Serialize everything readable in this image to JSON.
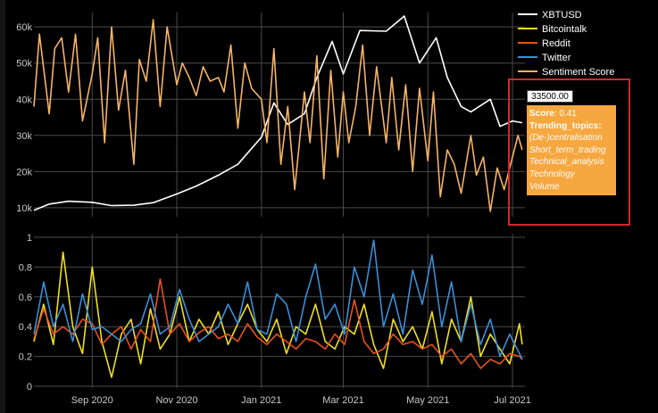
{
  "chart_data": [
    {
      "type": "line",
      "panel": "top",
      "ylim": [
        8000,
        63000
      ],
      "yticks": [
        10000,
        20000,
        30000,
        40000,
        50000,
        60000
      ],
      "ytick_labels": [
        "10k",
        "20k",
        "30k",
        "40k",
        "50k",
        "60k"
      ],
      "grid": true,
      "series": [
        {
          "name": "XBTUSD",
          "color": "#ffffff",
          "x": [
            "2020-07-21",
            "2020-08-01",
            "2020-08-15",
            "2020-09-01",
            "2020-09-15",
            "2020-10-01",
            "2020-10-15",
            "2020-11-01",
            "2020-11-15",
            "2020-12-01",
            "2020-12-15",
            "2021-01-01",
            "2021-01-10",
            "2021-01-20",
            "2021-02-01",
            "2021-02-10",
            "2021-02-21",
            "2021-03-01",
            "2021-03-13",
            "2021-04-01",
            "2021-04-14",
            "2021-04-25",
            "2021-05-07",
            "2021-05-15",
            "2021-05-25",
            "2021-06-01",
            "2021-06-15",
            "2021-06-22",
            "2021-07-01",
            "2021-07-08"
          ],
          "y": [
            9300,
            11000,
            11800,
            11500,
            10600,
            10700,
            11400,
            13800,
            16000,
            19000,
            22000,
            29500,
            39000,
            33000,
            36000,
            46000,
            56000,
            47000,
            59000,
            58800,
            63000,
            50000,
            57000,
            46000,
            38000,
            36500,
            40000,
            32500,
            34000,
            33500
          ]
        },
        {
          "name": "Sentiment Score",
          "color": "#f6b366",
          "x": [
            "2020-07-21",
            "2020-07-25",
            "2020-08-01",
            "2020-08-05",
            "2020-08-10",
            "2020-08-15",
            "2020-08-20",
            "2020-08-25",
            "2020-09-01",
            "2020-09-05",
            "2020-09-10",
            "2020-09-15",
            "2020-09-20",
            "2020-09-25",
            "2020-10-01",
            "2020-10-05",
            "2020-10-10",
            "2020-10-15",
            "2020-10-20",
            "2020-10-25",
            "2020-11-01",
            "2020-11-05",
            "2020-11-10",
            "2020-11-15",
            "2020-11-20",
            "2020-11-25",
            "2020-12-01",
            "2020-12-05",
            "2020-12-10",
            "2020-12-15",
            "2020-12-20",
            "2020-12-25",
            "2021-01-01",
            "2021-01-05",
            "2021-01-10",
            "2021-01-15",
            "2021-01-20",
            "2021-01-25",
            "2021-02-01",
            "2021-02-05",
            "2021-02-10",
            "2021-02-15",
            "2021-02-20",
            "2021-02-25",
            "2021-03-01",
            "2021-03-05",
            "2021-03-10",
            "2021-03-15",
            "2021-03-20",
            "2021-03-25",
            "2021-04-01",
            "2021-04-05",
            "2021-04-10",
            "2021-04-15",
            "2021-04-20",
            "2021-04-25",
            "2021-05-01",
            "2021-05-05",
            "2021-05-10",
            "2021-05-15",
            "2021-05-20",
            "2021-05-25",
            "2021-06-01",
            "2021-06-05",
            "2021-06-10",
            "2021-06-15",
            "2021-06-20",
            "2021-06-25",
            "2021-07-01",
            "2021-07-05",
            "2021-07-08"
          ],
          "y": [
            38000,
            58000,
            36000,
            54000,
            57000,
            42000,
            58000,
            34000,
            47000,
            57000,
            28000,
            60000,
            37000,
            48000,
            22000,
            51000,
            45000,
            62000,
            38000,
            60000,
            44000,
            50000,
            46000,
            41000,
            49000,
            45000,
            46000,
            42000,
            55000,
            32000,
            50000,
            43000,
            40000,
            28000,
            54000,
            22000,
            38000,
            15000,
            42000,
            28000,
            52000,
            18000,
            48000,
            24000,
            42000,
            28000,
            38000,
            55000,
            30000,
            49000,
            28000,
            46000,
            26000,
            44000,
            20000,
            43000,
            23000,
            42000,
            13000,
            26000,
            22000,
            14000,
            30000,
            19000,
            24000,
            9000,
            21000,
            15000,
            24000,
            30000,
            26000
          ]
        }
      ]
    },
    {
      "type": "line",
      "panel": "bottom",
      "ylim": [
        0,
        1
      ],
      "yticks": [
        0,
        0.2,
        0.4,
        0.6,
        0.8,
        1
      ],
      "ytick_labels": [
        "0",
        "0.2",
        "0.4",
        "0.6",
        "0.8",
        "1"
      ],
      "xtick_labels": [
        "Sep 2020",
        "Nov 2020",
        "Jan 2021",
        "Mar 2021",
        "May 2021",
        "Jul 2021"
      ],
      "grid": true,
      "series": [
        {
          "name": "Bitcointalk",
          "color": "#f0e020",
          "x": [
            "2020-07-21",
            "2020-07-28",
            "2020-08-04",
            "2020-08-11",
            "2020-08-18",
            "2020-08-25",
            "2020-09-01",
            "2020-09-08",
            "2020-09-15",
            "2020-09-22",
            "2020-09-29",
            "2020-10-06",
            "2020-10-13",
            "2020-10-20",
            "2020-10-27",
            "2020-11-03",
            "2020-11-10",
            "2020-11-17",
            "2020-11-24",
            "2020-12-01",
            "2020-12-08",
            "2020-12-15",
            "2020-12-22",
            "2020-12-29",
            "2021-01-05",
            "2021-01-12",
            "2021-01-19",
            "2021-01-26",
            "2021-02-02",
            "2021-02-09",
            "2021-02-16",
            "2021-02-23",
            "2021-03-02",
            "2021-03-09",
            "2021-03-16",
            "2021-03-23",
            "2021-03-30",
            "2021-04-06",
            "2021-04-13",
            "2021-04-20",
            "2021-04-27",
            "2021-05-04",
            "2021-05-11",
            "2021-05-18",
            "2021-05-25",
            "2021-06-01",
            "2021-06-08",
            "2021-06-15",
            "2021-06-22",
            "2021-06-29",
            "2021-07-06",
            "2021-07-08"
          ],
          "y": [
            0.3,
            0.55,
            0.28,
            0.9,
            0.4,
            0.22,
            0.8,
            0.3,
            0.06,
            0.35,
            0.45,
            0.15,
            0.52,
            0.25,
            0.35,
            0.6,
            0.3,
            0.45,
            0.35,
            0.5,
            0.28,
            0.42,
            0.55,
            0.38,
            0.3,
            0.45,
            0.22,
            0.4,
            0.35,
            0.55,
            0.3,
            0.25,
            0.4,
            0.35,
            0.55,
            0.28,
            0.12,
            0.45,
            0.3,
            0.4,
            0.25,
            0.5,
            0.15,
            0.45,
            0.3,
            0.6,
            0.2,
            0.35,
            0.25,
            0.15,
            0.42,
            0.28
          ]
        },
        {
          "name": "Reddit",
          "color": "#e8521c",
          "x": [
            "2020-07-21",
            "2020-07-28",
            "2020-08-04",
            "2020-08-11",
            "2020-08-18",
            "2020-08-25",
            "2020-09-01",
            "2020-09-08",
            "2020-09-15",
            "2020-09-22",
            "2020-09-29",
            "2020-10-06",
            "2020-10-13",
            "2020-10-20",
            "2020-10-27",
            "2020-11-03",
            "2020-11-10",
            "2020-11-17",
            "2020-11-24",
            "2020-12-01",
            "2020-12-08",
            "2020-12-15",
            "2020-12-22",
            "2020-12-29",
            "2021-01-05",
            "2021-01-12",
            "2021-01-19",
            "2021-01-26",
            "2021-02-02",
            "2021-02-09",
            "2021-02-16",
            "2021-02-23",
            "2021-03-02",
            "2021-03-09",
            "2021-03-16",
            "2021-03-23",
            "2021-03-30",
            "2021-04-06",
            "2021-04-13",
            "2021-04-20",
            "2021-04-27",
            "2021-05-04",
            "2021-05-11",
            "2021-05-18",
            "2021-05-25",
            "2021-06-01",
            "2021-06-08",
            "2021-06-15",
            "2021-06-22",
            "2021-06-29",
            "2021-07-06",
            "2021-07-08"
          ],
          "y": [
            0.32,
            0.52,
            0.35,
            0.4,
            0.35,
            0.45,
            0.42,
            0.28,
            0.35,
            0.4,
            0.25,
            0.38,
            0.3,
            0.72,
            0.35,
            0.42,
            0.3,
            0.36,
            0.4,
            0.32,
            0.35,
            0.3,
            0.42,
            0.33,
            0.28,
            0.35,
            0.3,
            0.25,
            0.32,
            0.3,
            0.25,
            0.35,
            0.28,
            0.58,
            0.3,
            0.22,
            0.25,
            0.35,
            0.28,
            0.3,
            0.25,
            0.28,
            0.2,
            0.25,
            0.15,
            0.22,
            0.12,
            0.18,
            0.15,
            0.22,
            0.2,
            0.18
          ]
        },
        {
          "name": "Twitter",
          "color": "#3a8fd8",
          "x": [
            "2020-07-21",
            "2020-07-28",
            "2020-08-04",
            "2020-08-11",
            "2020-08-18",
            "2020-08-25",
            "2020-09-01",
            "2020-09-08",
            "2020-09-15",
            "2020-09-22",
            "2020-09-29",
            "2020-10-06",
            "2020-10-13",
            "2020-10-20",
            "2020-10-27",
            "2020-11-03",
            "2020-11-10",
            "2020-11-17",
            "2020-11-24",
            "2020-12-01",
            "2020-12-08",
            "2020-12-15",
            "2020-12-22",
            "2020-12-29",
            "2021-01-05",
            "2021-01-12",
            "2021-01-19",
            "2021-01-26",
            "2021-02-02",
            "2021-02-09",
            "2021-02-16",
            "2021-02-23",
            "2021-03-02",
            "2021-03-09",
            "2021-03-16",
            "2021-03-23",
            "2021-03-30",
            "2021-04-06",
            "2021-04-13",
            "2021-04-20",
            "2021-04-27",
            "2021-05-04",
            "2021-05-11",
            "2021-05-18",
            "2021-05-25",
            "2021-06-01",
            "2021-06-08",
            "2021-06-15",
            "2021-06-22",
            "2021-06-29",
            "2021-07-06",
            "2021-07-08"
          ],
          "y": [
            0.35,
            0.7,
            0.4,
            0.55,
            0.3,
            0.62,
            0.38,
            0.4,
            0.35,
            0.3,
            0.38,
            0.42,
            0.62,
            0.35,
            0.4,
            0.65,
            0.45,
            0.3,
            0.35,
            0.4,
            0.55,
            0.42,
            0.7,
            0.38,
            0.35,
            0.62,
            0.55,
            0.3,
            0.6,
            0.82,
            0.45,
            0.55,
            0.35,
            0.8,
            0.6,
            0.98,
            0.4,
            0.62,
            0.35,
            0.78,
            0.55,
            0.88,
            0.4,
            0.7,
            0.3,
            0.55,
            0.28,
            0.45,
            0.2,
            0.35,
            0.22,
            0.18
          ]
        }
      ]
    }
  ],
  "legend": {
    "items": [
      {
        "label": "XBTUSD",
        "color": "#ffffff"
      },
      {
        "label": "Bitcointalk",
        "color": "#f0e020"
      },
      {
        "label": "Reddit",
        "color": "#e8521c"
      },
      {
        "label": "Twitter",
        "color": "#3a8fd8"
      },
      {
        "label": "Sentiment Score",
        "color": "#f6b366"
      }
    ]
  },
  "hover": {
    "price_label": "33500.00",
    "score_label": "Score",
    "score_value": ": 0.41",
    "topics_label": "Trending_topics:",
    "topics": [
      "(De-)centralisation",
      "Short_term_trading",
      "Technical_analysis",
      "Technology",
      "Volume"
    ]
  }
}
